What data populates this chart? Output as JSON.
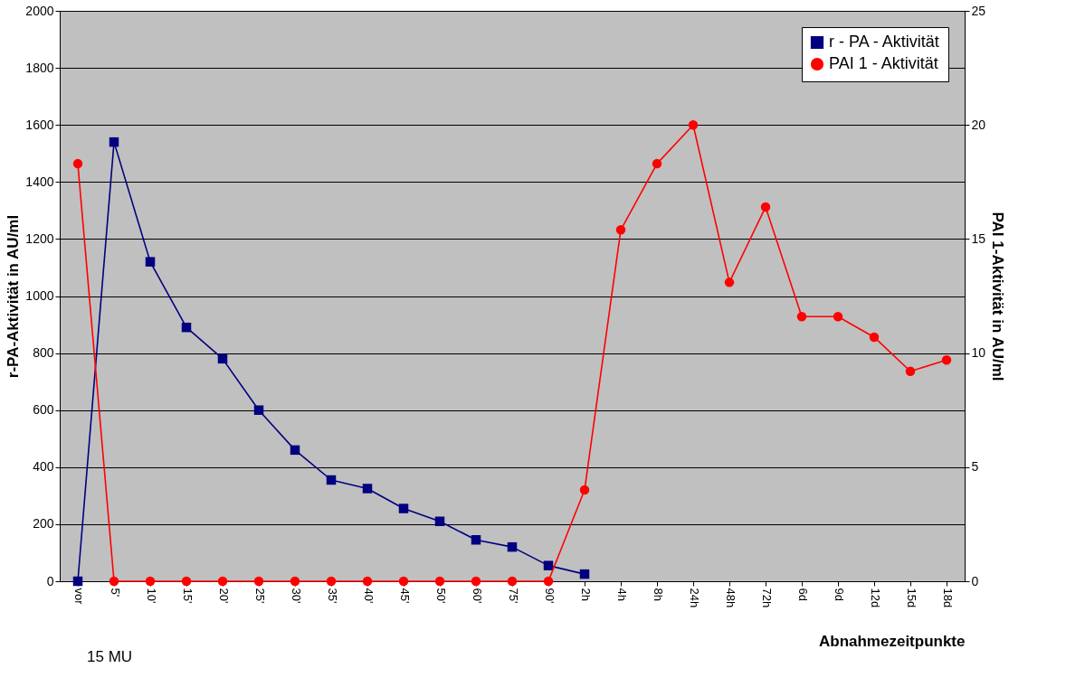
{
  "chart_data": {
    "type": "line",
    "xlabel": "Abnahmezeitpunkte",
    "ylabel": "r-PA-Aktivität in AU/ml",
    "y2label": "PAI 1-Aktivität in AU/ml",
    "categories": [
      "vor",
      "5'",
      "10'",
      "15'",
      "20'",
      "25'",
      "30'",
      "35'",
      "40'",
      "45'",
      "50'",
      "60'",
      "75'",
      "90'",
      "2h",
      "4h",
      "8h",
      "24h",
      "48h",
      "72h",
      "6d",
      "9d",
      "12d",
      "15d",
      "18d"
    ],
    "series": [
      {
        "name": "r - PA - Aktivität",
        "color": "#000080",
        "marker": "square",
        "values": [
          0,
          1540,
          1120,
          890,
          780,
          600,
          460,
          355,
          325,
          255,
          210,
          145,
          120,
          55,
          25,
          null,
          null,
          null,
          null,
          null,
          null,
          null,
          null,
          null,
          null
        ]
      },
      {
        "name": "PAI 1 - Aktivität",
        "color": "#ff0000",
        "marker": "circle",
        "axis": "y2",
        "values": [
          18.3,
          0,
          0,
          0,
          0,
          0,
          0,
          0,
          0,
          0,
          0,
          0,
          0,
          0,
          4,
          15.4,
          18.3,
          20,
          13.1,
          16.4,
          11.6,
          11.6,
          10.7,
          9.2,
          9.7
        ]
      }
    ],
    "ylim": [
      0,
      2000
    ],
    "yticks": [
      0,
      200,
      400,
      600,
      800,
      1000,
      1200,
      1400,
      1600,
      1800,
      2000
    ],
    "y2lim": [
      0,
      25
    ],
    "y2ticks": [
      0,
      5,
      10,
      15,
      20,
      25
    ],
    "grid": "y",
    "legend": "top right",
    "line_style": "solid",
    "annotations": [
      "15 MU"
    ]
  }
}
